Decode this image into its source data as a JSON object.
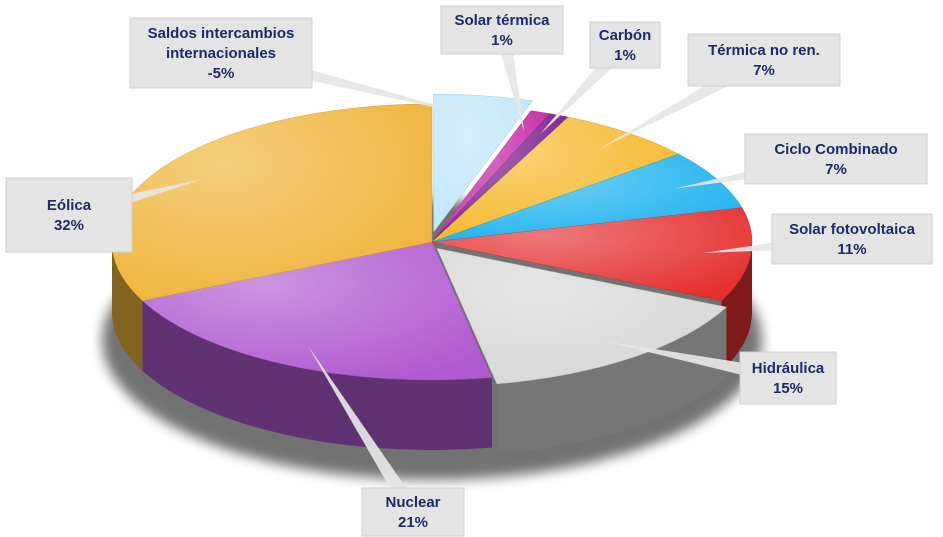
{
  "chart_data": {
    "type": "pie",
    "title": "",
    "style": "3d-exploded",
    "slices": [
      {
        "name": "Saldos intercambios internacionales",
        "label_lines": [
          "Saldos intercambios",
          "internacionales"
        ],
        "value_label": "-5%",
        "value": 5,
        "color": "#bfe6fa"
      },
      {
        "name": "Solar térmica",
        "label_lines": [
          "Solar térmica"
        ],
        "value_label": "1%",
        "value": 1,
        "color": "#c42aa8"
      },
      {
        "name": "Carbón",
        "label_lines": [
          "Carbón"
        ],
        "value_label": "1%",
        "value": 1,
        "color": "#7a1f8c"
      },
      {
        "name": "Térmica no ren.",
        "label_lines": [
          "Térmica no ren."
        ],
        "value_label": "7%",
        "value": 7,
        "color": "#f6b82a"
      },
      {
        "name": "Ciclo Combinado",
        "label_lines": [
          "Ciclo Combinado"
        ],
        "value_label": "7%",
        "value": 7,
        "color": "#1fb3ef"
      },
      {
        "name": "Solar fotovoltaica",
        "label_lines": [
          "Solar fotovoltaica"
        ],
        "value_label": "11%",
        "value": 11,
        "color": "#e53030"
      },
      {
        "name": "Hidráulica",
        "label_lines": [
          "Hidráulica"
        ],
        "value_label": "15%",
        "value": 15,
        "color": "#d7d7d7"
      },
      {
        "name": "Nuclear",
        "label_lines": [
          "Nuclear"
        ],
        "value_label": "21%",
        "value": 21,
        "color": "#b05ad0"
      },
      {
        "name": "Eólica",
        "label_lines": [
          "Eólica"
        ],
        "value_label": "32%",
        "value": 32,
        "color": "#efb43a"
      }
    ]
  }
}
